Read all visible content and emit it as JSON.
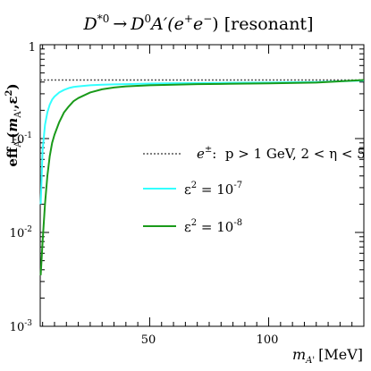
{
  "chart_data": {
    "type": "line",
    "title": "D*0 → D0 A'(e+e−) [resonant]",
    "title_parts": {
      "lhs": "D",
      "lhs_sup": "*0",
      "arrow": "→",
      "rhs": "D",
      "rhs_sup": "0",
      "rhs_rest": "A′(e",
      "ep_sup": "+",
      "mid": "e",
      "em_sup": "−",
      "close": ") [resonant]"
    },
    "xlabel": "m_A' [MeV]",
    "xlabel_parts": {
      "m": "m",
      "sub": "A'",
      "unit": "[MeV]"
    },
    "ylabel": "eff_A'(m_A', ε²)",
    "ylabel_parts": {
      "eff": "eff",
      "sub": "A'",
      "open": "(",
      "m": "m",
      "msub": "A'",
      "comma": ",ε",
      "sup2": "2",
      "close": ")"
    },
    "xlim": [
      4,
      140
    ],
    "ylim": [
      0.001,
      1
    ],
    "yscale": "log",
    "x_ticks": [
      {
        "value": 50,
        "label": "50"
      },
      {
        "value": 100,
        "label": "100"
      }
    ],
    "y_ticks": [
      {
        "value": 1,
        "base": "1",
        "exp": ""
      },
      {
        "value": 0.1,
        "base": "10",
        "exp": "-1"
      },
      {
        "value": 0.01,
        "base": "10",
        "exp": "-2"
      },
      {
        "value": 0.001,
        "base": "10",
        "exp": "-3"
      }
    ],
    "series": [
      {
        "name": "e±: p > 1 GeV, 2 < η < 5",
        "legend_parts": {
          "sym": "e",
          "sup": "±",
          "text": ":  p > 1 GeV, 2 < η < 5"
        },
        "color": "#555555",
        "style": "dotted",
        "x": [
          4,
          140
        ],
        "y": [
          0.42,
          0.42
        ]
      },
      {
        "name": "ε² = 10⁻⁷",
        "legend_parts": {
          "sym": "ε",
          "sup": "2",
          "text": " = 10",
          "exp": "-7"
        },
        "color": "#33ffff",
        "style": "solid",
        "x": [
          4.2,
          5,
          6,
          7,
          8,
          9,
          10,
          12,
          14,
          16,
          18,
          20,
          25,
          30,
          40,
          50,
          60,
          80,
          100,
          120,
          140
        ],
        "y": [
          0.02,
          0.075,
          0.14,
          0.19,
          0.23,
          0.26,
          0.28,
          0.31,
          0.33,
          0.345,
          0.355,
          0.36,
          0.37,
          0.375,
          0.38,
          0.385,
          0.388,
          0.392,
          0.395,
          0.4,
          0.415
        ]
      },
      {
        "name": "ε² = 10⁻⁸",
        "legend_parts": {
          "sym": "ε",
          "sup": "2",
          "text": " = 10",
          "exp": "-8"
        },
        "color": "#1a9a1a",
        "style": "solid",
        "x": [
          4.2,
          5,
          6,
          7,
          8,
          9,
          10,
          12,
          14,
          16,
          18,
          20,
          25,
          30,
          35,
          40,
          50,
          60,
          70,
          80,
          100,
          120,
          140
        ],
        "y": [
          0.0035,
          0.008,
          0.02,
          0.04,
          0.065,
          0.09,
          0.11,
          0.15,
          0.19,
          0.22,
          0.25,
          0.27,
          0.31,
          0.335,
          0.35,
          0.36,
          0.37,
          0.375,
          0.38,
          0.382,
          0.387,
          0.395,
          0.42
        ]
      }
    ]
  }
}
